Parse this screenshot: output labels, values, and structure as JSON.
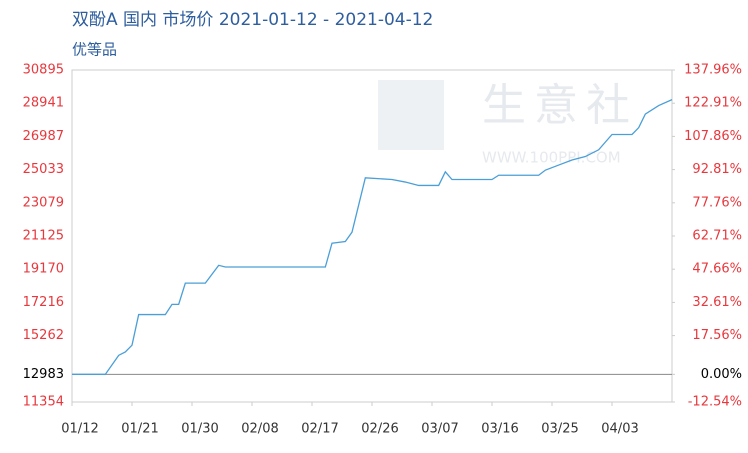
{
  "chart_data": {
    "type": "line",
    "title": "双酚A 国内 市场价 2021-01-12 - 2021-04-12",
    "subtitle": "优等品",
    "watermark": "生意社",
    "watermark_url": "WWW.100PPI.COM",
    "xlim": [
      "01/12",
      "04/12"
    ],
    "xticks": [
      "01/12",
      "01/21",
      "01/30",
      "02/08",
      "02/17",
      "02/26",
      "03/07",
      "03/16",
      "03/25",
      "04/03"
    ],
    "ylim": [
      11354,
      30895
    ],
    "yticks": [
      11354,
      12983,
      15262,
      17216,
      19170,
      21125,
      23079,
      25033,
      26987,
      28941,
      30895
    ],
    "y2lim": [
      -12.54,
      137.96
    ],
    "y2ticks": [
      {
        "value": -12.54,
        "label": "-12.54%"
      },
      {
        "value": 0,
        "label": "0.00%"
      },
      {
        "value": 17.56,
        "label": "17.56%"
      },
      {
        "value": 32.61,
        "label": "32.61%"
      },
      {
        "value": 47.66,
        "label": "47.66%"
      },
      {
        "value": 62.71,
        "label": "62.71%"
      },
      {
        "value": 77.76,
        "label": "77.76%"
      },
      {
        "value": 92.81,
        "label": "92.81%"
      },
      {
        "value": 107.86,
        "label": "107.86%"
      },
      {
        "value": 122.91,
        "label": "122.91%"
      },
      {
        "value": 137.96,
        "label": "137.96%"
      }
    ],
    "axis_label_color": "#e8383d",
    "x": [
      "01/12",
      "01/17",
      "01/19",
      "01/20",
      "01/21",
      "01/22",
      "01/26",
      "01/27",
      "01/28",
      "01/29",
      "02/01",
      "02/03",
      "02/04",
      "02/19",
      "02/20",
      "02/22",
      "02/23",
      "02/25",
      "03/01",
      "03/03",
      "03/05",
      "03/08",
      "03/09",
      "03/10",
      "03/16",
      "03/17",
      "03/23",
      "03/24",
      "03/26",
      "03/28",
      "03/30",
      "04/01",
      "04/03",
      "04/06",
      "04/07",
      "04/08",
      "04/10",
      "04/12"
    ],
    "series": [
      {
        "color": "#4a9fd8",
        "values": [
          12983,
          12983,
          14100,
          14300,
          14700,
          16500,
          16500,
          17100,
          17100,
          18350,
          18350,
          19400,
          19300,
          19300,
          20700,
          20800,
          21350,
          24550,
          24450,
          24300,
          24100,
          24100,
          24900,
          24450,
          24450,
          24700,
          24700,
          25000,
          25300,
          25600,
          25800,
          26200,
          27100,
          27100,
          27500,
          28300,
          28800,
          29150
        ]
      }
    ]
  }
}
